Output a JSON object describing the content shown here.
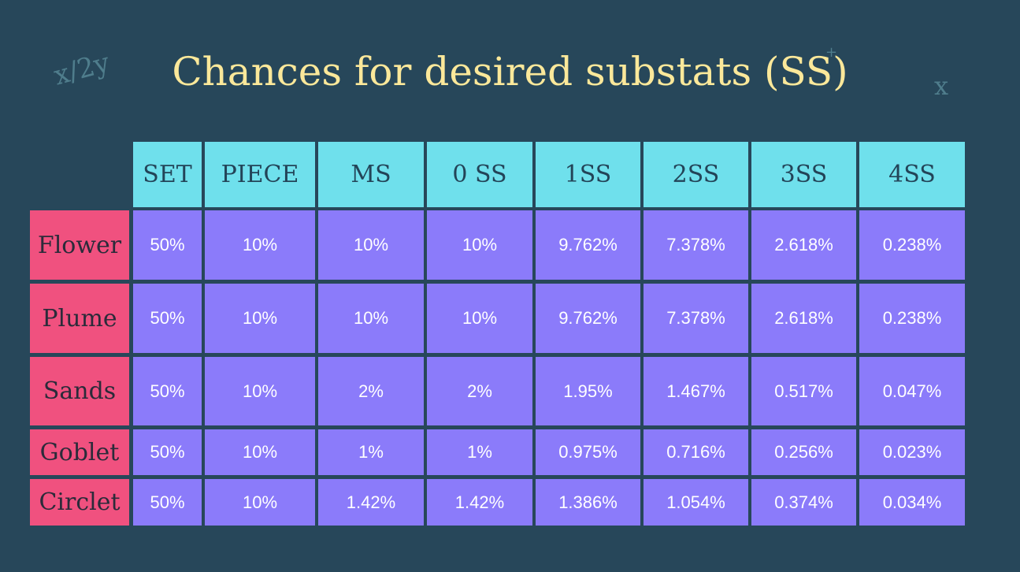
{
  "title": "Chances for desired substats (SS)",
  "decorations": [
    "x/2y",
    "+",
    "x"
  ],
  "table": {
    "header": [
      "SET",
      "PIECE",
      "MS",
      "0 SS",
      "1SS",
      "2SS",
      "3SS",
      "4SS"
    ],
    "rows": [
      {
        "label": "Flower",
        "cells": [
          "50%",
          "10%",
          "10%",
          "10%",
          "9.762%",
          "7.378%",
          "2.618%",
          "0.238%"
        ]
      },
      {
        "label": "Plume",
        "cells": [
          "50%",
          "10%",
          "10%",
          "10%",
          "9.762%",
          "7.378%",
          "2.618%",
          "0.238%"
        ]
      },
      {
        "label": "Sands",
        "cells": [
          "50%",
          "10%",
          "2%",
          "2%",
          "1.95%",
          "1.467%",
          "0.517%",
          "0.047%"
        ]
      },
      {
        "label": "Goblet",
        "cells": [
          "50%",
          "10%",
          "1%",
          "1%",
          "0.975%",
          "0.716%",
          "0.256%",
          "0.023%"
        ]
      },
      {
        "label": "Circlet",
        "cells": [
          "50%",
          "10%",
          "1.42%",
          "1.42%",
          "1.386%",
          "1.054%",
          "0.374%",
          "0.034%"
        ]
      }
    ]
  }
}
